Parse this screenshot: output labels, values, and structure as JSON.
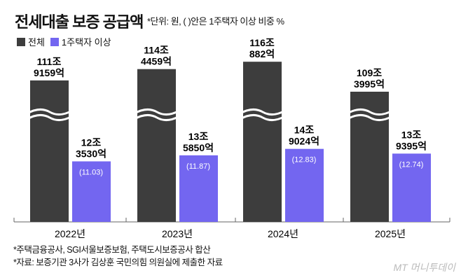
{
  "title": "전세대출 보증 공급액",
  "unit_note": "*단위: 원, ( )안은 1주택자 이상 비중 %",
  "notes": [
    "*주택금융공사, SGI서울보증보험, 주택도시보증공사 합산",
    "*자료: 보증기관 3사가 김상훈 국민의힘 의원실에 제출한 자료"
  ],
  "logo": "MT 머니투데이",
  "colors": {
    "total": "#3d3d3d",
    "one_plus": "#7366f0"
  },
  "chart_data": {
    "type": "bar",
    "categories": [
      "2022년",
      "2023년",
      "2024년",
      "2025년"
    ],
    "axis_break": true,
    "series": [
      {
        "name": "전체",
        "values_eok": [
          1119159,
          1144459,
          1160882,
          1093995
        ],
        "labels": [
          [
            "111조",
            "9159억"
          ],
          [
            "114조",
            "4459억"
          ],
          [
            "116조",
            "882억"
          ],
          [
            "109조",
            "3995억"
          ]
        ]
      },
      {
        "name": "1주택자 이상",
        "values_eok": [
          123530,
          135850,
          149024,
          139395
        ],
        "labels": [
          [
            "12조",
            "3530억"
          ],
          [
            "13조",
            "5850억"
          ],
          [
            "14조",
            "9024억"
          ],
          [
            "13조",
            "9395억"
          ]
        ],
        "share_pct": [
          "(11.03)",
          "(11.87)",
          "(12.83)",
          "(12.74)"
        ]
      }
    ],
    "legend": "top-left"
  }
}
